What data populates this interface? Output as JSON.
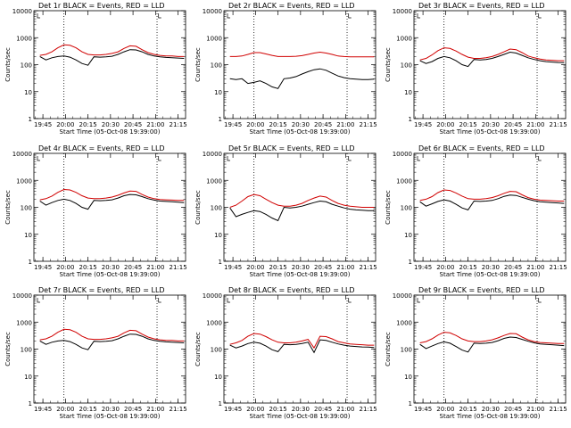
{
  "chart_data": [
    {
      "type": "line",
      "title": "Det 1r  BLACK = Events, RED = LLD",
      "xlabel": "Start Time (05-Oct-08 19:39:00)",
      "ylabel": "Counts/sec",
      "x": [
        "19:43",
        "19:47",
        "19:51",
        "19:55",
        "19:59",
        "20:03",
        "20:07",
        "20:11",
        "20:15",
        "20:19",
        "20:23",
        "20:27",
        "20:31",
        "20:35",
        "20:39",
        "20:43",
        "20:47",
        "20:51",
        "20:55",
        "20:59",
        "21:03",
        "21:07",
        "21:11",
        "21:15",
        "21:19"
      ],
      "series": [
        {
          "name": "LLD",
          "color": "#d00000",
          "values": [
            220,
            240,
            300,
            420,
            540,
            520,
            420,
            300,
            240,
            230,
            230,
            240,
            260,
            300,
            400,
            500,
            480,
            360,
            280,
            240,
            220,
            210,
            210,
            200,
            200
          ]
        },
        {
          "name": "Events",
          "color": "#000000",
          "values": [
            200,
            150,
            180,
            200,
            210,
            190,
            150,
            110,
            95,
            195,
            190,
            195,
            205,
            240,
            300,
            360,
            350,
            300,
            240,
            210,
            195,
            185,
            180,
            175,
            170
          ]
        }
      ],
      "xticks": [
        "19:45",
        "20:00",
        "20:15",
        "20:30",
        "20:45",
        "21:00",
        "21:15"
      ],
      "yticks": [
        "1",
        "10",
        "100",
        "1000",
        "10000"
      ],
      "ylim": [
        1,
        10000
      ],
      "yscale": "log"
    },
    {
      "type": "line",
      "title": "Det 2r  BLACK = Events, RED = LLD",
      "xlabel": "Start Time (05-Oct-08 19:39:00)",
      "ylabel": "Counts/sec",
      "x": [
        "19:43",
        "19:47",
        "19:51",
        "19:55",
        "19:59",
        "20:03",
        "20:07",
        "20:11",
        "20:15",
        "20:19",
        "20:23",
        "20:27",
        "20:31",
        "20:35",
        "20:39",
        "20:43",
        "20:47",
        "20:51",
        "20:55",
        "20:59",
        "21:03",
        "21:07",
        "21:11",
        "21:15",
        "21:19"
      ],
      "series": [
        {
          "name": "LLD",
          "color": "#d00000",
          "values": [
            200,
            200,
            210,
            240,
            280,
            280,
            250,
            220,
            200,
            200,
            200,
            205,
            215,
            240,
            270,
            290,
            270,
            240,
            210,
            200,
            195,
            195,
            195,
            195,
            195
          ]
        },
        {
          "name": "Events",
          "color": "#000000",
          "values": [
            30,
            28,
            30,
            20,
            22,
            25,
            20,
            15,
            13,
            30,
            32,
            36,
            45,
            55,
            65,
            70,
            62,
            48,
            38,
            33,
            30,
            29,
            28,
            28,
            29
          ]
        }
      ],
      "xticks": [
        "19:45",
        "20:00",
        "20:15",
        "20:30",
        "20:45",
        "21:00",
        "21:15"
      ],
      "yticks": [
        "1",
        "10",
        "100",
        "1000",
        "10000"
      ],
      "ylim": [
        1,
        10000
      ],
      "yscale": "log"
    },
    {
      "type": "line",
      "title": "Det 3r  BLACK = Events, RED = LLD",
      "xlabel": "Start Time (05-Oct-08 19:39:00)",
      "ylabel": "Counts/sec",
      "x": [
        "19:43",
        "19:47",
        "19:51",
        "19:55",
        "19:59",
        "20:03",
        "20:07",
        "20:11",
        "20:15",
        "20:19",
        "20:23",
        "20:27",
        "20:31",
        "20:35",
        "20:39",
        "20:43",
        "20:47",
        "20:51",
        "20:55",
        "20:59",
        "21:03",
        "21:07",
        "21:11",
        "21:15",
        "21:19"
      ],
      "series": [
        {
          "name": "LLD",
          "color": "#d00000",
          "values": [
            150,
            170,
            230,
            330,
            420,
            400,
            320,
            240,
            190,
            170,
            170,
            180,
            200,
            240,
            300,
            380,
            360,
            280,
            210,
            180,
            160,
            150,
            145,
            140,
            140
          ]
        },
        {
          "name": "Events",
          "color": "#000000",
          "values": [
            140,
            110,
            130,
            170,
            200,
            180,
            140,
            100,
            85,
            155,
            150,
            155,
            170,
            200,
            240,
            290,
            270,
            220,
            180,
            155,
            140,
            130,
            125,
            120,
            118
          ]
        }
      ],
      "xticks": [
        "19:45",
        "20:00",
        "20:15",
        "20:30",
        "20:45",
        "21:00",
        "21:15"
      ],
      "yticks": [
        "1",
        "10",
        "100",
        "1000",
        "10000"
      ],
      "ylim": [
        1,
        10000
      ],
      "yscale": "log"
    },
    {
      "type": "line",
      "title": "Det 4r  BLACK = Events, RED = LLD",
      "xlabel": "Start Time (05-Oct-08 19:39:00)",
      "ylabel": "Counts/sec",
      "x": [
        "19:43",
        "19:47",
        "19:51",
        "19:55",
        "19:59",
        "20:03",
        "20:07",
        "20:11",
        "20:15",
        "20:19",
        "20:23",
        "20:27",
        "20:31",
        "20:35",
        "20:39",
        "20:43",
        "20:47",
        "20:51",
        "20:55",
        "20:59",
        "21:03",
        "21:07",
        "21:11",
        "21:15",
        "21:19"
      ],
      "series": [
        {
          "name": "LLD",
          "color": "#d00000",
          "values": [
            190,
            210,
            260,
            360,
            460,
            440,
            360,
            270,
            220,
            210,
            210,
            220,
            240,
            280,
            340,
            400,
            390,
            300,
            240,
            210,
            195,
            190,
            185,
            180,
            180
          ]
        },
        {
          "name": "Events",
          "color": "#000000",
          "values": [
            170,
            120,
            150,
            180,
            200,
            180,
            140,
            100,
            85,
            180,
            175,
            180,
            190,
            220,
            270,
            300,
            290,
            250,
            210,
            185,
            170,
            165,
            160,
            155,
            150
          ]
        }
      ],
      "xticks": [
        "19:45",
        "20:00",
        "20:15",
        "20:30",
        "20:45",
        "21:00",
        "21:15"
      ],
      "yticks": [
        "1",
        "10",
        "100",
        "1000",
        "10000"
      ],
      "ylim": [
        1,
        10000
      ],
      "yscale": "log"
    },
    {
      "type": "line",
      "title": "Det 5r  BLACK = Events, RED = LLD",
      "xlabel": "Start Time (05-Oct-08 19:39:00)",
      "ylabel": "Counts/sec",
      "x": [
        "19:43",
        "19:47",
        "19:51",
        "19:55",
        "19:59",
        "20:03",
        "20:07",
        "20:11",
        "20:15",
        "20:19",
        "20:23",
        "20:27",
        "20:31",
        "20:35",
        "20:39",
        "20:43",
        "20:47",
        "20:51",
        "20:55",
        "20:59",
        "21:03",
        "21:07",
        "21:11",
        "21:15",
        "21:19"
      ],
      "series": [
        {
          "name": "LLD",
          "color": "#d00000",
          "values": [
            100,
            120,
            170,
            250,
            300,
            270,
            200,
            150,
            120,
            110,
            110,
            120,
            140,
            180,
            220,
            260,
            240,
            180,
            140,
            120,
            110,
            105,
            100,
            100,
            100
          ]
        },
        {
          "name": "Events",
          "color": "#000000",
          "values": [
            95,
            45,
            55,
            65,
            75,
            70,
            55,
            40,
            32,
            100,
            95,
            100,
            110,
            130,
            150,
            170,
            160,
            130,
            110,
            95,
            85,
            80,
            78,
            75,
            75
          ]
        }
      ],
      "xticks": [
        "19:45",
        "20:00",
        "20:15",
        "20:30",
        "20:45",
        "21:00",
        "21:15"
      ],
      "yticks": [
        "1",
        "10",
        "100",
        "1000",
        "10000"
      ],
      "ylim": [
        1,
        10000
      ],
      "yscale": "log"
    },
    {
      "type": "line",
      "title": "Det 6r  BLACK = Events, RED = LLD",
      "xlabel": "Start Time (05-Oct-08 19:39:00)",
      "ylabel": "Counts/sec",
      "x": [
        "19:43",
        "19:47",
        "19:51",
        "19:55",
        "19:59",
        "20:03",
        "20:07",
        "20:11",
        "20:15",
        "20:19",
        "20:23",
        "20:27",
        "20:31",
        "20:35",
        "20:39",
        "20:43",
        "20:47",
        "20:51",
        "20:55",
        "20:59",
        "21:03",
        "21:07",
        "21:11",
        "21:15",
        "21:19"
      ],
      "series": [
        {
          "name": "LLD",
          "color": "#d00000",
          "values": [
            180,
            200,
            250,
            350,
            440,
            420,
            340,
            260,
            210,
            200,
            200,
            210,
            230,
            270,
            330,
            390,
            380,
            290,
            230,
            200,
            185,
            180,
            175,
            170,
            170
          ]
        },
        {
          "name": "Events",
          "color": "#000000",
          "values": [
            160,
            110,
            135,
            165,
            190,
            170,
            130,
            95,
            80,
            170,
            165,
            170,
            180,
            210,
            255,
            285,
            275,
            235,
            200,
            175,
            160,
            155,
            150,
            145,
            140
          ]
        }
      ],
      "xticks": [
        "19:45",
        "20:00",
        "20:15",
        "20:30",
        "20:45",
        "21:00",
        "21:15"
      ],
      "yticks": [
        "1",
        "10",
        "100",
        "1000",
        "10000"
      ],
      "ylim": [
        1,
        10000
      ],
      "yscale": "log"
    },
    {
      "type": "line",
      "title": "Det 7r  BLACK = Events, RED = LLD",
      "xlabel": "Start Time (05-Oct-08 19:39:00)",
      "ylabel": "Counts/sec",
      "x": [
        "19:43",
        "19:47",
        "19:51",
        "19:55",
        "19:59",
        "20:03",
        "20:07",
        "20:11",
        "20:15",
        "20:19",
        "20:23",
        "20:27",
        "20:31",
        "20:35",
        "20:39",
        "20:43",
        "20:47",
        "20:51",
        "20:55",
        "20:59",
        "21:03",
        "21:07",
        "21:11",
        "21:15",
        "21:19"
      ],
      "series": [
        {
          "name": "LLD",
          "color": "#d00000",
          "values": [
            220,
            240,
            300,
            420,
            540,
            520,
            420,
            300,
            240,
            230,
            230,
            240,
            260,
            300,
            400,
            500,
            480,
            360,
            280,
            240,
            220,
            210,
            210,
            200,
            200
          ]
        },
        {
          "name": "Events",
          "color": "#000000",
          "values": [
            200,
            150,
            180,
            200,
            210,
            190,
            150,
            110,
            95,
            195,
            190,
            195,
            205,
            240,
            300,
            360,
            350,
            300,
            240,
            210,
            195,
            185,
            180,
            175,
            170
          ]
        }
      ],
      "xticks": [
        "19:45",
        "20:00",
        "20:15",
        "20:30",
        "20:45",
        "21:00",
        "21:15"
      ],
      "yticks": [
        "1",
        "10",
        "100",
        "1000",
        "10000"
      ],
      "ylim": [
        1,
        10000
      ],
      "yscale": "log"
    },
    {
      "type": "line",
      "title": "Det 8r  BLACK = Events, RED = LLD",
      "xlabel": "Start Time (05-Oct-08 19:39:00)",
      "ylabel": "Counts/sec",
      "x": [
        "19:43",
        "19:47",
        "19:51",
        "19:55",
        "19:59",
        "20:03",
        "20:07",
        "20:11",
        "20:15",
        "20:19",
        "20:23",
        "20:27",
        "20:31",
        "20:35",
        "20:39",
        "20:43",
        "20:47",
        "20:51",
        "20:55",
        "20:59",
        "21:03",
        "21:07",
        "21:11",
        "21:15",
        "21:19"
      ],
      "series": [
        {
          "name": "LLD",
          "color": "#d00000",
          "values": [
            150,
            170,
            210,
            300,
            380,
            360,
            290,
            220,
            180,
            170,
            170,
            180,
            200,
            230,
            110,
            300,
            290,
            240,
            190,
            170,
            155,
            150,
            145,
            140,
            140
          ]
        },
        {
          "name": "Events",
          "color": "#000000",
          "values": [
            140,
            110,
            130,
            160,
            180,
            165,
            130,
            95,
            80,
            150,
            145,
            150,
            160,
            180,
            75,
            220,
            210,
            180,
            155,
            140,
            130,
            125,
            120,
            118,
            115
          ]
        }
      ],
      "xticks": [
        "19:45",
        "20:00",
        "20:15",
        "20:30",
        "20:45",
        "21:00",
        "21:15"
      ],
      "yticks": [
        "1",
        "10",
        "100",
        "1000",
        "10000"
      ],
      "ylim": [
        1,
        10000
      ],
      "yscale": "log"
    },
    {
      "type": "line",
      "title": "Det 9r  BLACK = Events, RED = LLD",
      "xlabel": "Start Time (05-Oct-08 19:39:00)",
      "ylabel": "Counts/sec",
      "x": [
        "19:43",
        "19:47",
        "19:51",
        "19:55",
        "19:59",
        "20:03",
        "20:07",
        "20:11",
        "20:15",
        "20:19",
        "20:23",
        "20:27",
        "20:31",
        "20:35",
        "20:39",
        "20:43",
        "20:47",
        "20:51",
        "20:55",
        "20:59",
        "21:03",
        "21:07",
        "21:11",
        "21:15",
        "21:19"
      ],
      "series": [
        {
          "name": "LLD",
          "color": "#d00000",
          "values": [
            170,
            190,
            240,
            330,
            420,
            400,
            320,
            240,
            200,
            190,
            190,
            200,
            220,
            260,
            320,
            380,
            370,
            280,
            220,
            190,
            175,
            170,
            165,
            160,
            160
          ]
        },
        {
          "name": "Events",
          "color": "#000000",
          "values": [
            150,
            105,
            130,
            160,
            185,
            165,
            125,
            92,
            78,
            165,
            160,
            165,
            175,
            205,
            250,
            280,
            270,
            230,
            195,
            170,
            155,
            150,
            145,
            140,
            135
          ]
        }
      ],
      "xticks": [
        "19:45",
        "20:00",
        "20:15",
        "20:30",
        "20:45",
        "21:00",
        "21:15"
      ],
      "yticks": [
        "1",
        "10",
        "100",
        "1000",
        "10000"
      ],
      "ylim": [
        1,
        10000
      ],
      "yscale": "log"
    }
  ]
}
